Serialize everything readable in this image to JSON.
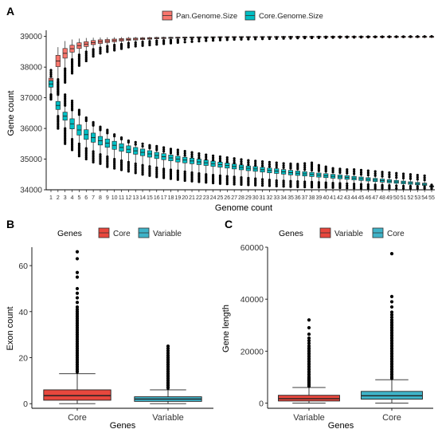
{
  "chart_data": [
    {
      "panel": "A",
      "type": "box",
      "xlabel": "Genome count",
      "ylabel": "Gene count",
      "xlim": [
        1,
        55
      ],
      "ylim": [
        34000,
        39200
      ],
      "yticks": [
        34000,
        35000,
        36000,
        37000,
        38000,
        39000
      ],
      "legend_position": "top",
      "series": [
        {
          "name": "Pan.Genome.Size",
          "fill": "#f8766d",
          "x": [
            1,
            2,
            3,
            4,
            5,
            6,
            7,
            8,
            9,
            10,
            11,
            12,
            13,
            14,
            15,
            16,
            17,
            18,
            19,
            20,
            21,
            22,
            23,
            24,
            25,
            26,
            27,
            28,
            29,
            30,
            31,
            32,
            33,
            34,
            35,
            36,
            37,
            38,
            39,
            40,
            41,
            42,
            43,
            44,
            45,
            46,
            47,
            48,
            49,
            50,
            51,
            52,
            53,
            54,
            55
          ],
          "median": [
            37500,
            38200,
            38450,
            38600,
            38700,
            38750,
            38800,
            38830,
            38850,
            38870,
            38890,
            38905,
            38915,
            38925,
            38935,
            38945,
            38950,
            38955,
            38960,
            38965,
            38970,
            38975,
            38978,
            38980,
            38983,
            38985,
            38987,
            38989,
            38990,
            38991,
            38992,
            38993,
            38994,
            38995,
            38996,
            38996,
            38997,
            38997,
            38998,
            38998,
            38998,
            38999,
            38999,
            38999,
            38999,
            39000,
            39000,
            39000,
            39000,
            39000,
            39000,
            39000,
            39000,
            39000,
            39000
          ],
          "whisker_low": [
            37100,
            37600,
            37950,
            38250,
            38400,
            38500,
            38580,
            38630,
            38680,
            38720,
            38750,
            38780,
            38800,
            38820,
            38840,
            38860,
            38870,
            38880,
            38890,
            38900,
            38910,
            38920,
            38930,
            38935,
            38940,
            38945,
            38950,
            38955,
            38960,
            38962,
            38965,
            38968,
            38970,
            38972,
            38975,
            38977,
            38979,
            38981,
            38983,
            38985,
            38986,
            38988,
            38989,
            38990,
            38991,
            38992,
            38993,
            38994,
            38995,
            38996,
            38997,
            38998,
            38998,
            38999,
            39000
          ],
          "whisker_high": [
            37900,
            38650,
            38850,
            38900,
            38930,
            38950,
            38960,
            38965,
            38970,
            38975,
            38980,
            38982,
            38984,
            38986,
            38988,
            38990,
            38991,
            38992,
            38993,
            38994,
            38995,
            38995,
            38996,
            38996,
            38997,
            38997,
            38997,
            38998,
            38998,
            38998,
            38998,
            38999,
            38999,
            38999,
            38999,
            38999,
            39000,
            39000,
            39000,
            39000,
            39000,
            39000,
            39000,
            39000,
            39000,
            39000,
            39000,
            39000,
            39000,
            39000,
            39000,
            39000,
            39000,
            39000,
            39000
          ],
          "outlier_low": [
            36950,
            37100,
            37500,
            37800,
            38050,
            38200,
            38350,
            38450,
            38500,
            38550,
            38600,
            38650,
            38680,
            38700,
            38720,
            38740,
            38760,
            38780,
            38800,
            38815,
            38830,
            38845,
            38860,
            38870,
            38880,
            38890,
            38900,
            38905,
            38910,
            38915,
            38920,
            38925,
            38930,
            38935,
            38940,
            38945,
            38950,
            38953,
            38956,
            38959,
            38962,
            38965,
            38968,
            38970,
            38972,
            38975,
            38978,
            38980,
            38982,
            38984,
            38986,
            38988,
            38990,
            38992,
            38999
          ]
        },
        {
          "name": "Core.Genome.Size",
          "fill": "#00bfc4",
          "x": [
            1,
            2,
            3,
            4,
            5,
            6,
            7,
            8,
            9,
            10,
            11,
            12,
            13,
            14,
            15,
            16,
            17,
            18,
            19,
            20,
            21,
            22,
            23,
            24,
            25,
            26,
            27,
            28,
            29,
            30,
            31,
            32,
            33,
            34,
            35,
            36,
            37,
            38,
            39,
            40,
            41,
            42,
            43,
            44,
            45,
            46,
            47,
            48,
            49,
            50,
            51,
            52,
            53,
            54,
            55
          ],
          "median": [
            37450,
            36750,
            36400,
            36150,
            35950,
            35800,
            35700,
            35600,
            35520,
            35450,
            35380,
            35320,
            35270,
            35220,
            35170,
            35120,
            35080,
            35040,
            35000,
            34970,
            34940,
            34910,
            34880,
            34850,
            34820,
            34790,
            34760,
            34730,
            34700,
            34680,
            34655,
            34630,
            34610,
            34585,
            34560,
            34540,
            34520,
            34500,
            34480,
            34460,
            34440,
            34420,
            34400,
            34380,
            34360,
            34340,
            34320,
            34300,
            34280,
            34260,
            34240,
            34220,
            34200,
            34180,
            34120
          ],
          "whisker_low": [
            37100,
            36400,
            36000,
            35650,
            35500,
            35350,
            35250,
            35150,
            35080,
            35000,
            34950,
            34900,
            34850,
            34800,
            34760,
            34720,
            34680,
            34650,
            34620,
            34590,
            34560,
            34530,
            34500,
            34480,
            34460,
            34440,
            34420,
            34400,
            34380,
            34360,
            34340,
            34320,
            34300,
            34290,
            34280,
            34270,
            34260,
            34250,
            34240,
            34230,
            34220,
            34210,
            34200,
            34190,
            34180,
            34170,
            34160,
            34150,
            34140,
            34130,
            34120,
            34115,
            34110,
            34105,
            34100
          ],
          "whisker_high": [
            37700,
            37150,
            36750,
            36600,
            36450,
            36250,
            36100,
            35950,
            35850,
            35750,
            35650,
            35550,
            35480,
            35420,
            35360,
            35300,
            35250,
            35200,
            35160,
            35120,
            35080,
            35040,
            35000,
            34970,
            34940,
            34910,
            34880,
            34850,
            34820,
            34800,
            34780,
            34760,
            34740,
            34720,
            34700,
            34680,
            34660,
            34640,
            34620,
            34600,
            34580,
            34560,
            34540,
            34520,
            34500,
            34480,
            34460,
            34440,
            34420,
            34400,
            34380,
            34360,
            34340,
            34320,
            34140
          ],
          "outlier_high": [
            37900,
            37500,
            37100,
            36900,
            36600,
            36350,
            36200,
            36050,
            35950,
            35800,
            35700,
            35600,
            35550,
            35500,
            35450,
            35420,
            35380,
            35330,
            35300,
            35260,
            35220,
            35180,
            35140,
            35110,
            35080,
            35050,
            35020,
            34990,
            34960,
            34940,
            34920,
            34900,
            34880,
            34860,
            34850,
            34840,
            34860,
            34880,
            34800,
            34750,
            34700,
            34680,
            34660,
            34660,
            34640,
            34620,
            34600,
            34580,
            34560,
            34540,
            34520,
            34500,
            34480,
            34460,
            34160
          ],
          "outlier_low": [
            36950,
            36000,
            35500,
            35300,
            35100,
            35000,
            34900,
            34850,
            34750,
            34700,
            34650,
            34600,
            34550,
            34500,
            34460,
            34420,
            34390,
            34360,
            34330,
            34300,
            34280,
            34260,
            34240,
            34220,
            34200,
            34190,
            34180,
            34170,
            34160,
            34150,
            34140,
            34130,
            34120,
            34110,
            34100,
            34095,
            34090,
            34085,
            34080,
            34075,
            34070,
            34065,
            34060,
            34055,
            34050,
            34050,
            34050,
            34050,
            34050,
            34050,
            34050,
            34050,
            34050,
            34050,
            34050
          ]
        }
      ]
    },
    {
      "panel": "B",
      "type": "box",
      "legend_title": "Genes",
      "legend_position": "top",
      "categories": [
        "Core",
        "Variable"
      ],
      "xlabel": "Genes",
      "ylabel": "Exon count",
      "ylim": [
        -2,
        68
      ],
      "yticks": [
        0,
        20,
        40,
        60
      ],
      "series": [
        {
          "name": "Core",
          "fill": "#e8473d",
          "q1": 1.5,
          "median": 3.5,
          "q3": 6,
          "whisker_low": 0,
          "whisker_high": 13,
          "max": 66,
          "outliers": [
            14,
            15,
            16,
            17,
            18,
            19,
            20,
            21,
            22,
            23,
            24,
            25,
            26,
            27,
            28,
            29,
            30,
            31,
            32,
            33,
            34,
            35,
            36,
            37,
            38,
            39,
            40,
            41,
            42,
            44,
            46,
            48,
            50,
            55,
            57,
            63,
            66
          ]
        },
        {
          "name": "Variable",
          "fill": "#3fb3c8",
          "q1": 1,
          "median": 2,
          "q3": 3,
          "whisker_low": 0,
          "whisker_high": 6,
          "max": 25,
          "outliers": [
            7,
            8,
            9,
            10,
            11,
            12,
            13,
            14,
            15,
            16,
            17,
            18,
            19,
            20,
            21,
            22,
            23,
            24,
            25
          ]
        }
      ]
    },
    {
      "panel": "C",
      "type": "box",
      "legend_title": "Genes",
      "legend_position": "top",
      "categories": [
        "Variable",
        "Core"
      ],
      "xlabel": "Genes",
      "ylabel": "Gene length",
      "ylim": [
        -2000,
        60000
      ],
      "yticks": [
        0,
        20000,
        40000,
        60000
      ],
      "series": [
        {
          "name": "Variable",
          "fill": "#e8473d",
          "q1": 800,
          "median": 1700,
          "q3": 3000,
          "whisker_low": 0,
          "whisker_high": 6000,
          "max": 32000,
          "outliers": [
            6500,
            7000,
            7500,
            8000,
            8500,
            9000,
            9500,
            10000,
            11000,
            12000,
            13000,
            14000,
            15000,
            16000,
            17000,
            18000,
            19000,
            20000,
            21000,
            22000,
            23000,
            24000,
            25000,
            26500,
            29000,
            32000
          ]
        },
        {
          "name": "Core",
          "fill": "#3fb3c8",
          "q1": 1500,
          "median": 2800,
          "q3": 4500,
          "whisker_low": 0,
          "whisker_high": 9000,
          "max": 57500,
          "outliers": [
            9500,
            10000,
            11000,
            12000,
            13000,
            14000,
            15000,
            16000,
            17000,
            18000,
            19000,
            20000,
            21000,
            22000,
            23000,
            24000,
            25000,
            26000,
            27000,
            28000,
            29000,
            30000,
            31000,
            32000,
            33000,
            34000,
            35000,
            37000,
            39000,
            41000,
            57500
          ]
        }
      ]
    }
  ],
  "panel_labels": [
    "A",
    "B",
    "C"
  ]
}
